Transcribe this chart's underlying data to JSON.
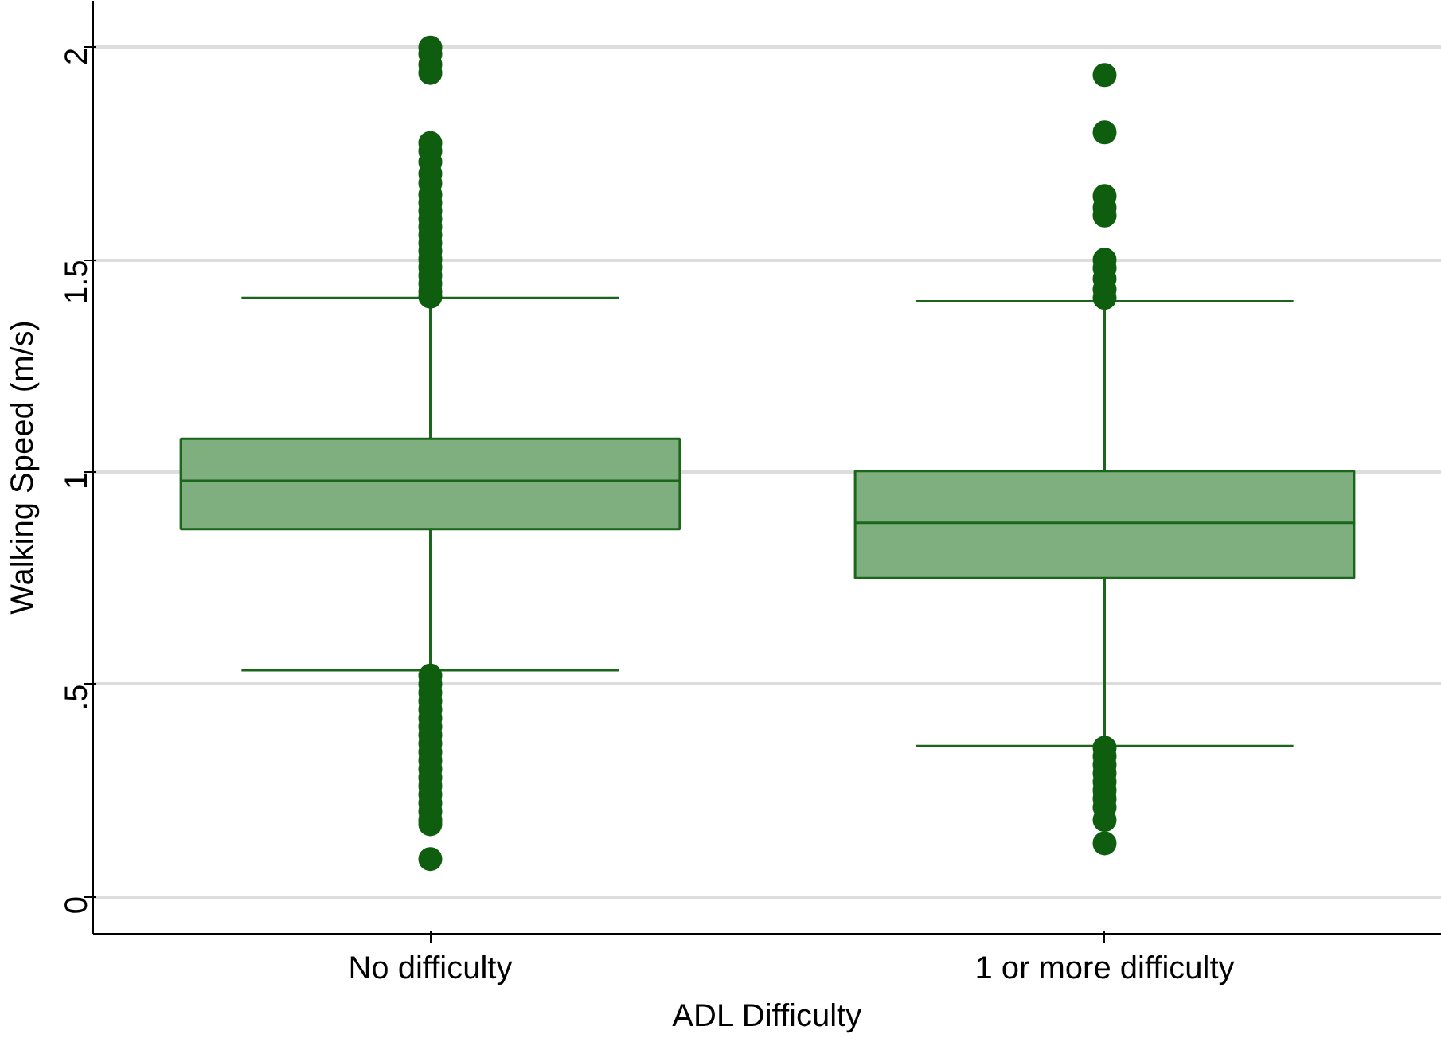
{
  "chart_data": {
    "type": "box",
    "xlabel": "ADL Difficulty",
    "ylabel": "Walking Speed (m/s)",
    "categories": [
      "No difficulty",
      "1 or more difficulty"
    ],
    "boxes": [
      {
        "low": 0.533,
        "q1": 0.865,
        "median": 0.979,
        "q3": 1.078,
        "high": 1.41,
        "outliers": [
          2.0,
          1.985,
          1.96,
          1.94,
          1.775,
          1.756,
          1.73,
          1.703,
          1.68,
          1.653,
          1.634,
          1.615,
          1.596,
          1.577,
          1.558,
          1.539,
          1.52,
          1.501,
          1.482,
          1.463,
          1.444,
          1.425,
          1.413,
          0.52,
          0.5,
          0.48,
          0.46,
          0.44,
          0.42,
          0.4,
          0.38,
          0.36,
          0.34,
          0.32,
          0.3,
          0.28,
          0.26,
          0.24,
          0.22,
          0.2,
          0.18,
          0.17,
          0.088
        ]
      },
      {
        "low": 0.354,
        "q1": 0.75,
        "median": 0.88,
        "q3": 1.002,
        "high": 1.402,
        "outliers": [
          1.935,
          1.8,
          1.65,
          1.623,
          1.604,
          1.5,
          1.48,
          1.455,
          1.43,
          1.41,
          0.35,
          0.33,
          0.31,
          0.29,
          0.27,
          0.25,
          0.23,
          0.21,
          0.18,
          0.125
        ]
      }
    ],
    "color": "#7fae7f",
    "ylim": [
      -0.088,
      2.11
    ],
    "yticks": [
      0,
      {
        "value": 0.5,
        "label": ".5"
      },
      1,
      1.5,
      2
    ],
    "grid": "y"
  }
}
